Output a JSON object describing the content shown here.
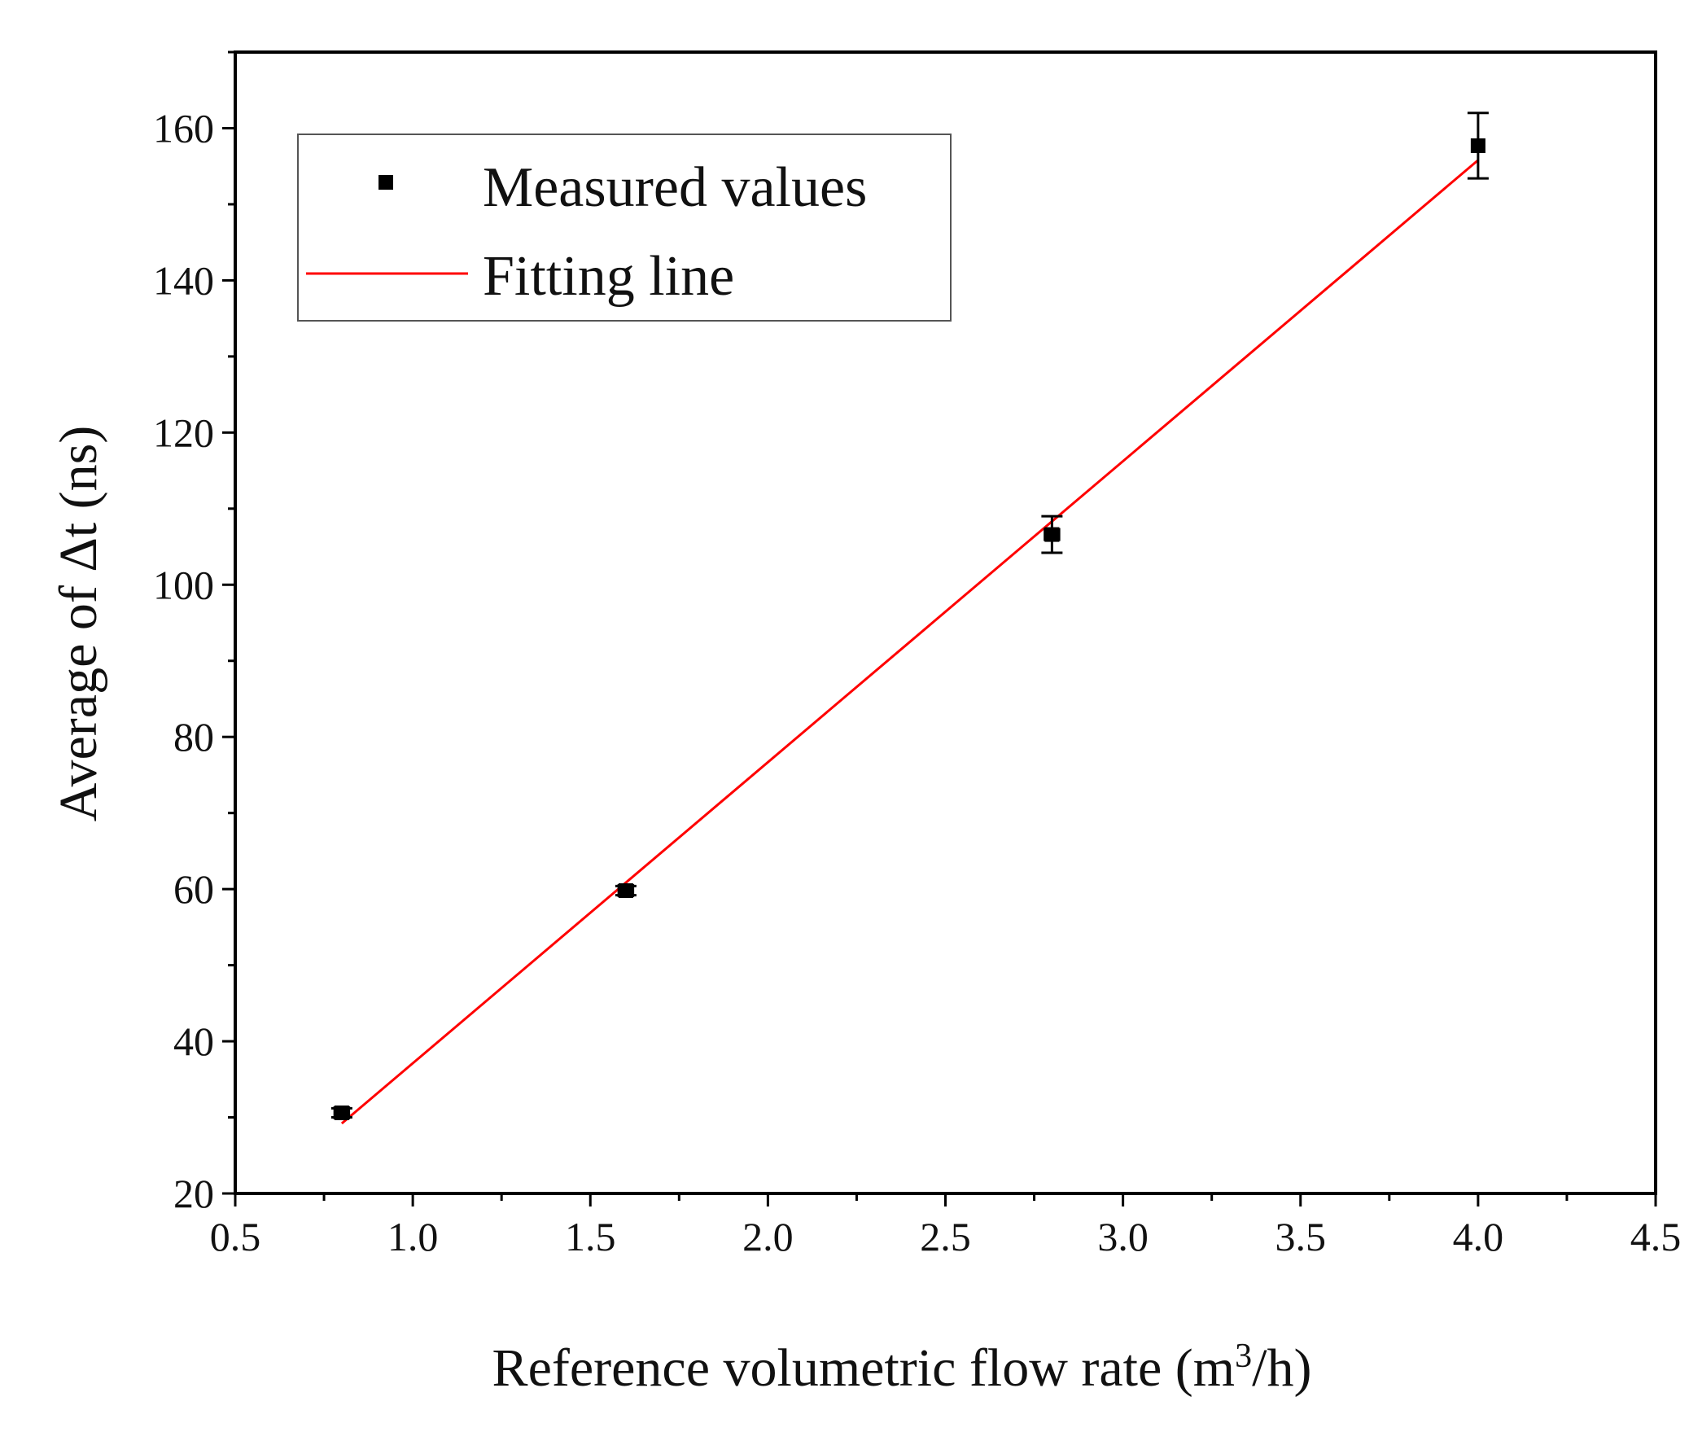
{
  "chart_data": {
    "type": "scatter",
    "title": "",
    "xlabel_prefix": "Reference volumetric flow rate (m",
    "xlabel_sup": "3",
    "xlabel_suffix": "/h)",
    "ylabel": "Average of Δt (ns)",
    "xlim": [
      0.5,
      4.5
    ],
    "ylim": [
      20,
      170
    ],
    "xticks": [
      "0.5",
      "1.0",
      "1.5",
      "2.0",
      "2.5",
      "3.0",
      "3.5",
      "4.0",
      "4.5"
    ],
    "yticks": [
      "20",
      "40",
      "60",
      "80",
      "100",
      "120",
      "140",
      "160"
    ],
    "grid": false,
    "legend_position": "top-left",
    "series": [
      {
        "name": "Measured values",
        "kind": "scatter",
        "marker": "square",
        "color": "#000000",
        "points": [
          {
            "x": 0.8,
            "y": 30.6,
            "yerr": 0.6,
            "xerr": 0.02
          },
          {
            "x": 1.6,
            "y": 59.8,
            "yerr": 0.6,
            "xerr": 0.02
          },
          {
            "x": 2.8,
            "y": 106.6,
            "yerr": 2.4,
            "xerr": 0.02
          },
          {
            "x": 4.0,
            "y": 157.7,
            "yerr": 4.3,
            "xerr": 0.0
          }
        ]
      },
      {
        "name": "Fitting line",
        "kind": "line",
        "color": "#ff0000",
        "x": [
          0.8,
          4.0
        ],
        "y": [
          29.2,
          155.8
        ]
      }
    ]
  }
}
